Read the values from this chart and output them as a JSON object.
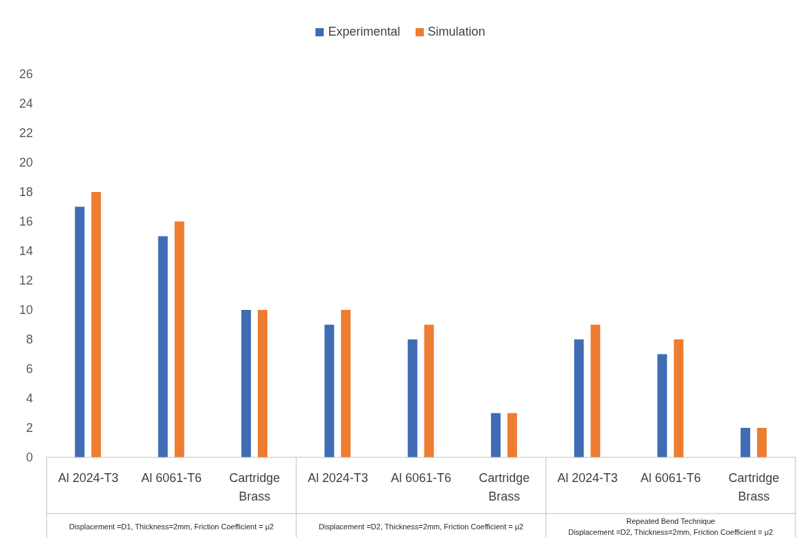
{
  "chart_data": {
    "type": "bar",
    "categories": [
      "Al 2024-T3",
      "Al 6061-T6",
      "Cartridge Brass",
      "Al 2024-T3",
      "Al 6061-T6",
      "Cartridge Brass",
      "Al 2024-T3",
      "Al 6061-T6",
      "Cartridge Brass"
    ],
    "series": [
      {
        "name": "Experimental",
        "color": "#3f6cb4",
        "values": [
          17,
          15,
          10,
          9,
          8,
          3,
          8,
          7,
          2
        ]
      },
      {
        "name": "Simulation",
        "color": "#ed7d31",
        "values": [
          18,
          16,
          10,
          10,
          9,
          3,
          9,
          8,
          2
        ]
      }
    ],
    "ylim": [
      0,
      26
    ],
    "yticks": [
      0,
      2,
      4,
      6,
      8,
      10,
      12,
      14,
      16,
      18,
      20,
      22,
      24,
      26
    ],
    "grid": false,
    "legend": "top",
    "annotations": [
      "Displacement =D1, Thickness=2mm, Friction Coefficient = μ2",
      "Displacement =D2, Thickness=2mm, Friction Coefficient = μ2",
      "Repeated Bend Technique\nDisplacement =D2, Thickness=2mm, Friction Coefficient = μ2"
    ]
  }
}
